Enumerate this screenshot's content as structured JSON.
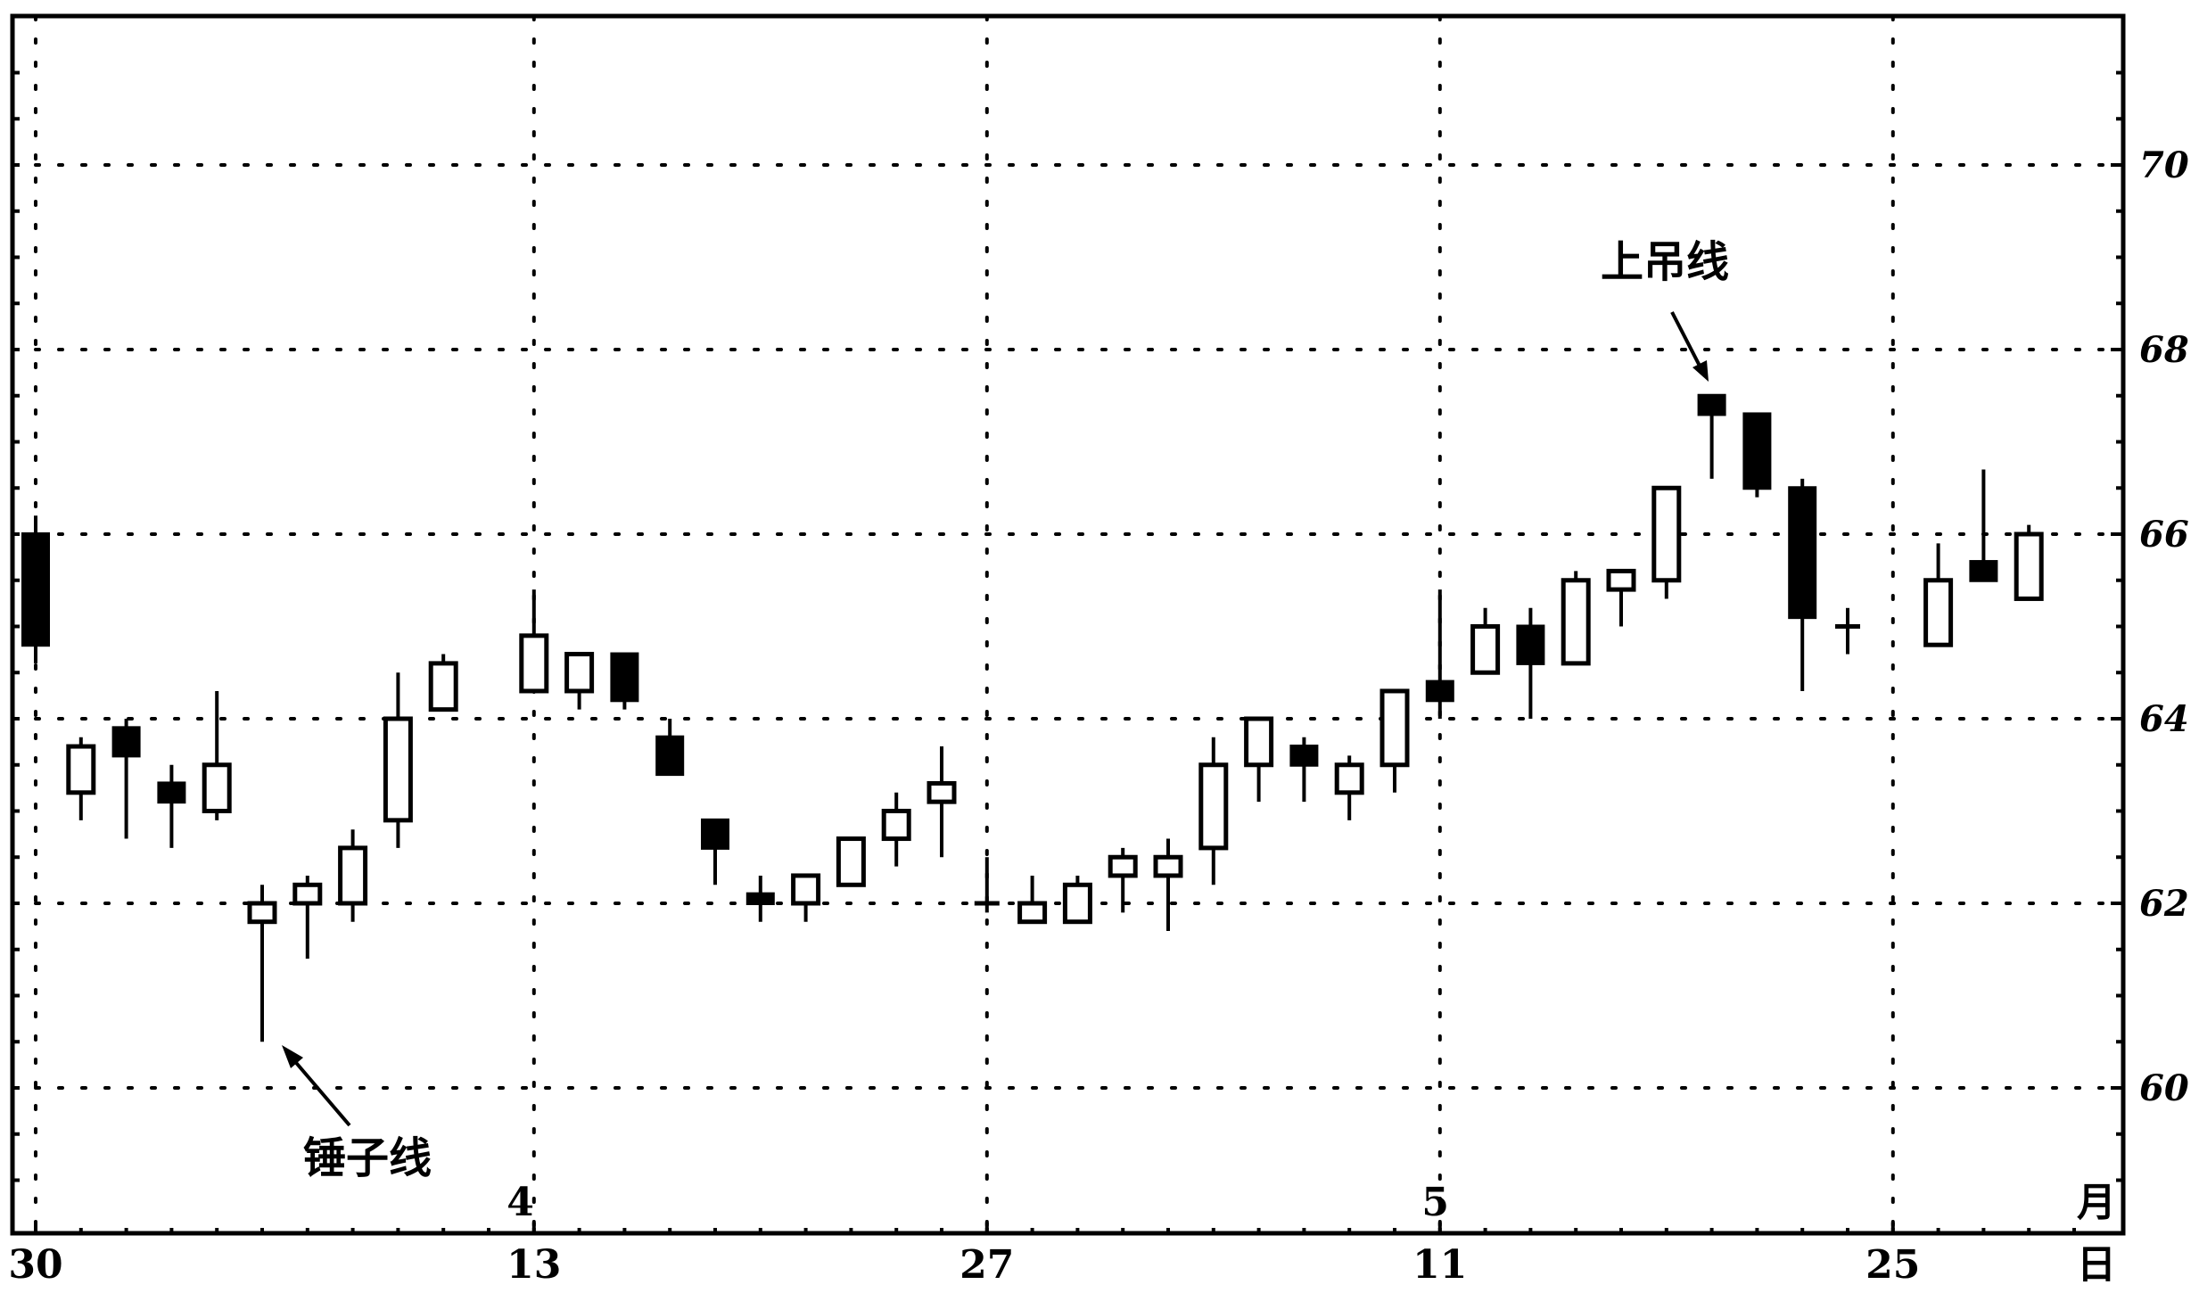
{
  "chart_data": {
    "type": "candlestick",
    "y_axis": {
      "ticks": [
        60,
        62,
        64,
        66,
        68,
        70
      ],
      "range": [
        58.5,
        71.5
      ],
      "position": "right"
    },
    "grid": true,
    "x_labels": [
      {
        "text": "30",
        "index": 0
      },
      {
        "text": "13",
        "index": 11
      },
      {
        "text": "27",
        "index": 21
      },
      {
        "text": "11",
        "index": 31
      },
      {
        "text": "25",
        "index": 41
      }
    ],
    "month_labels": [
      {
        "text": "4",
        "index": 10.7
      },
      {
        "text": "5",
        "index": 30.9
      }
    ],
    "month_unit": "月",
    "day_unit": "日",
    "candles": [
      {
        "i": 0,
        "o": 66.0,
        "h": 66.2,
        "l": 64.6,
        "c": 64.8
      },
      {
        "i": 1,
        "o": 63.2,
        "h": 63.8,
        "l": 62.9,
        "c": 63.7
      },
      {
        "i": 2,
        "o": 63.9,
        "h": 64.0,
        "l": 62.7,
        "c": 63.6
      },
      {
        "i": 3,
        "o": 63.3,
        "h": 63.5,
        "l": 62.6,
        "c": 63.1
      },
      {
        "i": 4,
        "o": 63.0,
        "h": 64.3,
        "l": 62.9,
        "c": 63.5
      },
      {
        "i": 5,
        "o": 61.8,
        "h": 62.2,
        "l": 60.5,
        "c": 62.0
      },
      {
        "i": 6,
        "o": 62.0,
        "h": 62.3,
        "l": 61.4,
        "c": 62.2
      },
      {
        "i": 7,
        "o": 62.0,
        "h": 62.8,
        "l": 61.8,
        "c": 62.6
      },
      {
        "i": 8,
        "o": 62.9,
        "h": 64.5,
        "l": 62.6,
        "c": 64.0
      },
      {
        "i": 9,
        "o": 64.1,
        "h": 64.7,
        "l": 64.1,
        "c": 64.6
      },
      {
        "i": 11,
        "o": 64.3,
        "h": 65.4,
        "l": 64.3,
        "c": 64.9
      },
      {
        "i": 12,
        "o": 64.3,
        "h": 64.7,
        "l": 64.1,
        "c": 64.7
      },
      {
        "i": 13,
        "o": 64.7,
        "h": 64.7,
        "l": 64.1,
        "c": 64.2
      },
      {
        "i": 14,
        "o": 63.8,
        "h": 64.0,
        "l": 63.4,
        "c": 63.4
      },
      {
        "i": 15,
        "o": 62.9,
        "h": 62.9,
        "l": 62.2,
        "c": 62.6
      },
      {
        "i": 16,
        "o": 62.1,
        "h": 62.3,
        "l": 61.8,
        "c": 62.0
      },
      {
        "i": 17,
        "o": 62.0,
        "h": 62.3,
        "l": 61.8,
        "c": 62.3
      },
      {
        "i": 18,
        "o": 62.2,
        "h": 62.7,
        "l": 62.2,
        "c": 62.7
      },
      {
        "i": 19,
        "o": 62.7,
        "h": 63.2,
        "l": 62.4,
        "c": 63.0
      },
      {
        "i": 20,
        "o": 63.1,
        "h": 63.7,
        "l": 62.5,
        "c": 63.3
      },
      {
        "i": 21,
        "o": 62.0,
        "h": 62.5,
        "l": 61.9,
        "c": 62.0
      },
      {
        "i": 22,
        "o": 61.8,
        "h": 62.3,
        "l": 61.8,
        "c": 62.0
      },
      {
        "i": 23,
        "o": 61.8,
        "h": 62.3,
        "l": 61.8,
        "c": 62.2
      },
      {
        "i": 24,
        "o": 62.3,
        "h": 62.6,
        "l": 61.9,
        "c": 62.5
      },
      {
        "i": 25,
        "o": 62.3,
        "h": 62.7,
        "l": 61.7,
        "c": 62.5
      },
      {
        "i": 26,
        "o": 62.6,
        "h": 63.8,
        "l": 62.2,
        "c": 63.5
      },
      {
        "i": 27,
        "o": 63.5,
        "h": 64.0,
        "l": 63.1,
        "c": 64.0
      },
      {
        "i": 28,
        "o": 63.7,
        "h": 63.8,
        "l": 63.1,
        "c": 63.5
      },
      {
        "i": 29,
        "o": 63.2,
        "h": 63.6,
        "l": 62.9,
        "c": 63.5
      },
      {
        "i": 30,
        "o": 63.5,
        "h": 64.3,
        "l": 63.2,
        "c": 64.3
      },
      {
        "i": 31,
        "o": 64.4,
        "h": 65.4,
        "l": 64.0,
        "c": 64.2
      },
      {
        "i": 32,
        "o": 64.5,
        "h": 65.2,
        "l": 64.5,
        "c": 65.0
      },
      {
        "i": 33,
        "o": 65.0,
        "h": 65.2,
        "l": 64.0,
        "c": 64.6
      },
      {
        "i": 34,
        "o": 64.6,
        "h": 65.6,
        "l": 64.6,
        "c": 65.5
      },
      {
        "i": 35,
        "o": 65.4,
        "h": 65.6,
        "l": 65.0,
        "c": 65.6
      },
      {
        "i": 36,
        "o": 65.5,
        "h": 66.5,
        "l": 65.3,
        "c": 66.5
      },
      {
        "i": 37,
        "o": 67.5,
        "h": 67.5,
        "l": 66.6,
        "c": 67.3
      },
      {
        "i": 38,
        "o": 67.3,
        "h": 67.3,
        "l": 66.4,
        "c": 66.5
      },
      {
        "i": 39,
        "o": 66.5,
        "h": 66.6,
        "l": 64.3,
        "c": 65.1
      },
      {
        "i": 40,
        "o": 65.0,
        "h": 65.2,
        "l": 64.7,
        "c": 65.0
      },
      {
        "i": 42,
        "o": 64.8,
        "h": 65.9,
        "l": 64.8,
        "c": 65.5
      },
      {
        "i": 43,
        "o": 65.7,
        "h": 66.7,
        "l": 65.5,
        "c": 65.5
      },
      {
        "i": 44,
        "o": 65.3,
        "h": 66.1,
        "l": 65.3,
        "c": 66.0
      }
    ],
    "annotations": [
      {
        "text": "锤子线",
        "target_index": 5
      },
      {
        "text": "上吊线",
        "target_index": 37
      }
    ]
  }
}
